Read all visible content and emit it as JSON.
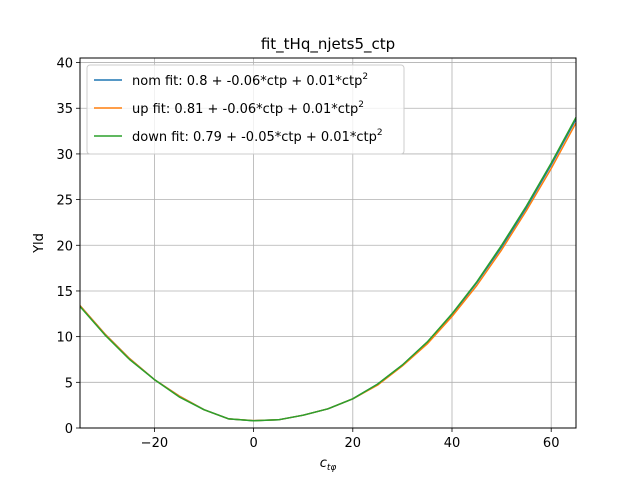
{
  "chart_data": {
    "type": "line",
    "title": "fit_tHq_njets5_ctp",
    "xlabel": "c_{tφ}",
    "ylabel": "Yld",
    "xlim": [
      -35,
      65
    ],
    "ylim": [
      0,
      40.5
    ],
    "xticks": [
      -20,
      0,
      20,
      40,
      60
    ],
    "xtick_labels": [
      "−20",
      "0",
      "20",
      "40",
      "60"
    ],
    "yticks": [
      0,
      5,
      10,
      15,
      20,
      25,
      30,
      35,
      40
    ],
    "ytick_labels": [
      "0",
      "5",
      "10",
      "15",
      "20",
      "25",
      "30",
      "35",
      "40"
    ],
    "grid": true,
    "legend_placement": "top-left",
    "series": [
      {
        "name": "nom fit: 0.8 + -0.06*ctp + 0.01*ctp",
        "name_superscript": "2",
        "color": "#1f77b4",
        "x": [
          -35,
          -30,
          -25,
          -20,
          -15,
          -10,
          -5,
          0,
          5,
          10,
          15,
          20,
          25,
          30,
          35,
          40,
          45,
          50,
          55,
          60,
          65
        ],
        "y": [
          13.4,
          10.3,
          7.6,
          5.3,
          3.5,
          2.0,
          1.0,
          0.8,
          0.9,
          1.4,
          2.1,
          3.2,
          4.8,
          6.9,
          9.4,
          12.4,
          15.9,
          19.8,
          24.1,
          28.8,
          33.8
        ]
      },
      {
        "name": "up fit: 0.81 + -0.06*ctp + 0.01*ctp",
        "name_superscript": "2",
        "color": "#ff7f0e",
        "x": [
          -35,
          -30,
          -25,
          -20,
          -15,
          -10,
          -5,
          0,
          5,
          10,
          15,
          20,
          25,
          30,
          35,
          40,
          45,
          50,
          55,
          60,
          65
        ],
        "y": [
          13.4,
          10.3,
          7.6,
          5.3,
          3.5,
          2.0,
          1.0,
          0.81,
          0.9,
          1.4,
          2.1,
          3.2,
          4.7,
          6.8,
          9.2,
          12.2,
          15.6,
          19.5,
          23.8,
          28.4,
          33.4
        ]
      },
      {
        "name": "down fit: 0.79 + -0.05*ctp + 0.01*ctp",
        "name_superscript": "2",
        "color": "#2ca02c",
        "x": [
          -35,
          -30,
          -25,
          -20,
          -15,
          -10,
          -5,
          0,
          5,
          10,
          15,
          20,
          25,
          30,
          35,
          40,
          45,
          50,
          55,
          60,
          65
        ],
        "y": [
          13.3,
          10.2,
          7.5,
          5.3,
          3.4,
          2.0,
          1.0,
          0.79,
          0.9,
          1.4,
          2.1,
          3.2,
          4.8,
          6.9,
          9.4,
          12.5,
          16.0,
          20.0,
          24.3,
          29.0,
          34.0
        ]
      }
    ]
  }
}
